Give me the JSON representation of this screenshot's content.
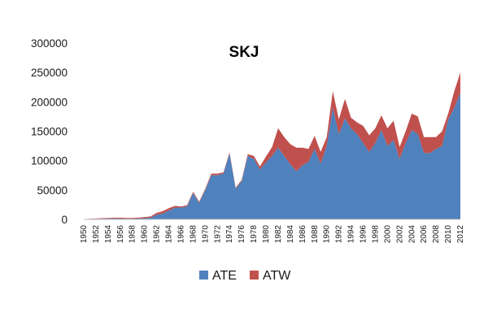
{
  "chart_data": {
    "type": "area",
    "stacked": true,
    "title": "SKJ",
    "xlabel": "",
    "ylabel": "",
    "x": [
      1950,
      1951,
      1952,
      1953,
      1954,
      1955,
      1956,
      1957,
      1958,
      1959,
      1960,
      1961,
      1962,
      1963,
      1964,
      1965,
      1966,
      1967,
      1968,
      1969,
      1970,
      1971,
      1972,
      1973,
      1974,
      1975,
      1976,
      1977,
      1978,
      1979,
      1980,
      1981,
      1982,
      1983,
      1984,
      1985,
      1986,
      1987,
      1988,
      1989,
      1990,
      1991,
      1992,
      1993,
      1994,
      1995,
      1996,
      1997,
      1998,
      1999,
      2000,
      2001,
      2002,
      2003,
      2004,
      2005,
      2006,
      2007,
      2008,
      2009,
      2010,
      2011,
      2012
    ],
    "xticks": [
      "1950",
      "1952",
      "1954",
      "1956",
      "1958",
      "1960",
      "1962",
      "1964",
      "1966",
      "1968",
      "1970",
      "1972",
      "1974",
      "1976",
      "1978",
      "1980",
      "1982",
      "1984",
      "1986",
      "1988",
      "1990",
      "1992",
      "1994",
      "1996",
      "1998",
      "2000",
      "2002",
      "2004",
      "2006",
      "2008",
      "2010",
      "2012"
    ],
    "yticks": [
      "0",
      "50000",
      "100000",
      "150000",
      "200000",
      "250000",
      "300000"
    ],
    "ylim": [
      0,
      300000
    ],
    "grid": false,
    "legend_position": "bottom",
    "series": [
      {
        "name": "ATE",
        "color": "#4f81bd",
        "values": [
          0,
          500,
          1000,
          1000,
          1500,
          1500,
          1500,
          1000,
          1000,
          1500,
          2000,
          3000,
          8000,
          10000,
          15000,
          20000,
          20000,
          22000,
          45000,
          28000,
          50000,
          75000,
          75000,
          78000,
          112000,
          52000,
          65000,
          108000,
          103000,
          85000,
          97000,
          108000,
          122000,
          108000,
          94000,
          82000,
          92000,
          98000,
          120000,
          95000,
          125000,
          190000,
          145000,
          172000,
          155000,
          145000,
          130000,
          115000,
          130000,
          152000,
          125000,
          135000,
          103000,
          130000,
          152000,
          145000,
          113000,
          113000,
          120000,
          125000,
          170000,
          190000,
          215000
        ]
      },
      {
        "name": "ATW",
        "color": "#c0504d",
        "values": [
          0,
          500,
          500,
          1000,
          1000,
          1500,
          1500,
          1500,
          1500,
          1500,
          2000,
          2000,
          3000,
          4000,
          4000,
          3000,
          2000,
          2000,
          2000,
          2000,
          2000,
          3000,
          3000,
          2000,
          2000,
          2000,
          2000,
          3000,
          5000,
          5000,
          10000,
          15000,
          33000,
          32000,
          34000,
          40000,
          30000,
          22000,
          22000,
          20000,
          15000,
          28000,
          25000,
          33000,
          18000,
          20000,
          29000,
          28000,
          25000,
          25000,
          30000,
          33000,
          20000,
          20000,
          28000,
          30000,
          27000,
          27000,
          20000,
          25000,
          10000,
          28000,
          35000
        ]
      }
    ]
  }
}
